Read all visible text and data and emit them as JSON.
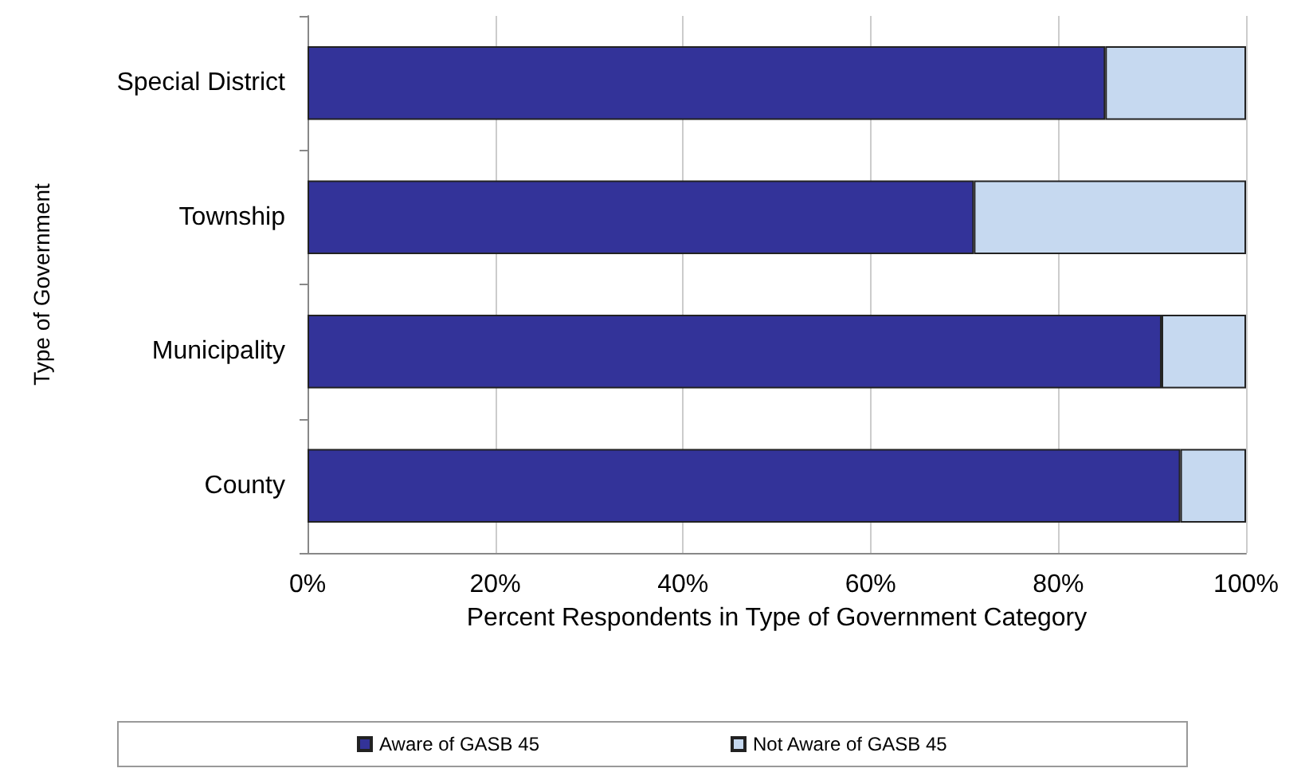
{
  "chart_data": {
    "type": "bar",
    "orientation": "horizontal",
    "stacked": true,
    "xlabel": "Percent Respondents in Type of Government Category",
    "ylabel": "Type of Government",
    "categories": [
      "Special District",
      "Township",
      "Municipality",
      "County"
    ],
    "series": [
      {
        "name": "Aware of GASB 45",
        "color": "#333399",
        "values": [
          85,
          71,
          91,
          93
        ]
      },
      {
        "name": "Not Aware of GASB 45",
        "color": "#c6d9f0",
        "values": [
          15,
          29,
          9,
          7
        ]
      }
    ],
    "xlim": [
      0,
      100
    ],
    "xticks": [
      {
        "value": 0,
        "label": "0%"
      },
      {
        "value": 20,
        "label": "20%"
      },
      {
        "value": 40,
        "label": "40%"
      },
      {
        "value": 60,
        "label": "60%"
      },
      {
        "value": 80,
        "label": "80%"
      },
      {
        "value": 100,
        "label": "100%"
      }
    ],
    "grid": "x",
    "legend": "bottom"
  }
}
